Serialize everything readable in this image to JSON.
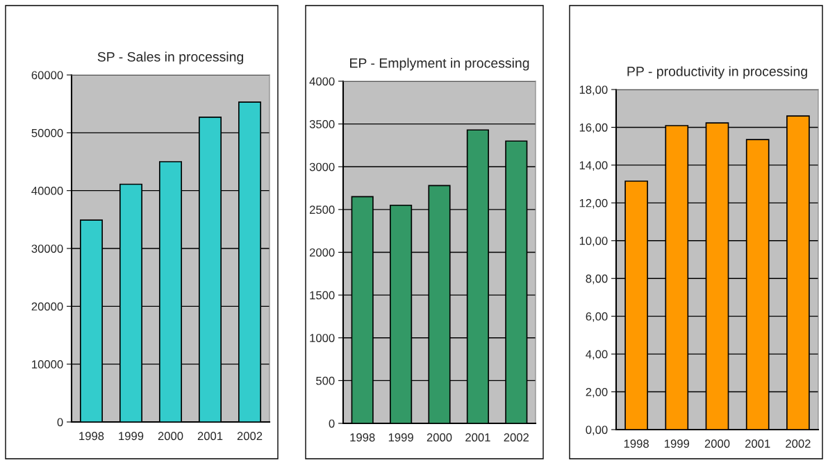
{
  "chart_data": [
    {
      "type": "bar",
      "title": "SP - Sales in processing",
      "categories": [
        "1998",
        "1999",
        "2000",
        "2001",
        "2002"
      ],
      "values": [
        34900,
        41100,
        45000,
        52700,
        55300
      ],
      "color": "#33cccc",
      "ylim": [
        0,
        60000
      ],
      "yticks": [
        0,
        10000,
        20000,
        30000,
        40000,
        50000,
        60000
      ],
      "grid": "y",
      "legend": false
    },
    {
      "type": "bar",
      "title": "EP - Emplyment in processing",
      "categories": [
        "1998",
        "1999",
        "2000",
        "2001",
        "2002"
      ],
      "values": [
        2650,
        2550,
        2780,
        3430,
        3300
      ],
      "color": "#339966",
      "ylim": [
        0,
        4000
      ],
      "yticks": [
        0,
        500,
        1000,
        1500,
        2000,
        2500,
        3000,
        3500,
        4000
      ],
      "grid": "y",
      "legend": false
    },
    {
      "type": "bar",
      "title": "PP - productivity in processing",
      "categories": [
        "1998",
        "1999",
        "2000",
        "2001",
        "2002"
      ],
      "values": [
        13.15,
        16.09,
        16.23,
        15.35,
        16.6
      ],
      "color": "#ff9900",
      "ylim": [
        0,
        18
      ],
      "yticks": [
        {
          "value": 0,
          "label": "0,00"
        },
        {
          "value": 2,
          "label": "2,00"
        },
        {
          "value": 4,
          "label": "4,00"
        },
        {
          "value": 6,
          "label": "6,00"
        },
        {
          "value": 8,
          "label": "8,00"
        },
        {
          "value": 10,
          "label": "10,00"
        },
        {
          "value": 12,
          "label": "12,00"
        },
        {
          "value": 14,
          "label": "14,00"
        },
        {
          "value": 16,
          "label": "16,00"
        },
        {
          "value": 18,
          "label": "18,00"
        }
      ],
      "grid": "y",
      "legend": false
    }
  ]
}
